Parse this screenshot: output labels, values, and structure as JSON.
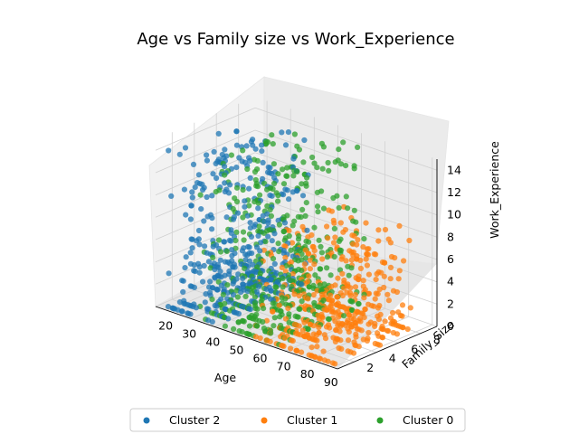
{
  "chart_data": {
    "type": "scatter",
    "title": "Age vs Family size vs Work_Experience",
    "xlabel": "Age",
    "ylabel": "Family_Size",
    "zlabel": "Work_Experience",
    "x_ticks": [
      20,
      30,
      40,
      50,
      60,
      70,
      80,
      90
    ],
    "y_ticks": [
      2,
      4,
      6,
      8
    ],
    "z_ticks": [
      0,
      2,
      4,
      6,
      8,
      10,
      12,
      14
    ],
    "xlim": [
      15,
      92
    ],
    "ylim": [
      0.5,
      9.5
    ],
    "zlim": [
      0,
      15
    ],
    "legend_position": "bottom-center",
    "series": [
      {
        "name": "Cluster 2",
        "color": "#1f77b4",
        "age_range": [
          18,
          40
        ],
        "family_size_range": [
          1,
          9
        ],
        "work_experience_range": [
          0,
          14
        ]
      },
      {
        "name": "Cluster 1",
        "color": "#ff7f0e",
        "age_range": [
          55,
          89
        ],
        "family_size_range": [
          1,
          8
        ],
        "work_experience_range": [
          0,
          9
        ]
      },
      {
        "name": "Cluster 0",
        "color": "#2ca02c",
        "age_range": [
          30,
          65
        ],
        "family_size_range": [
          1,
          9
        ],
        "work_experience_range": [
          0,
          14
        ]
      }
    ]
  }
}
